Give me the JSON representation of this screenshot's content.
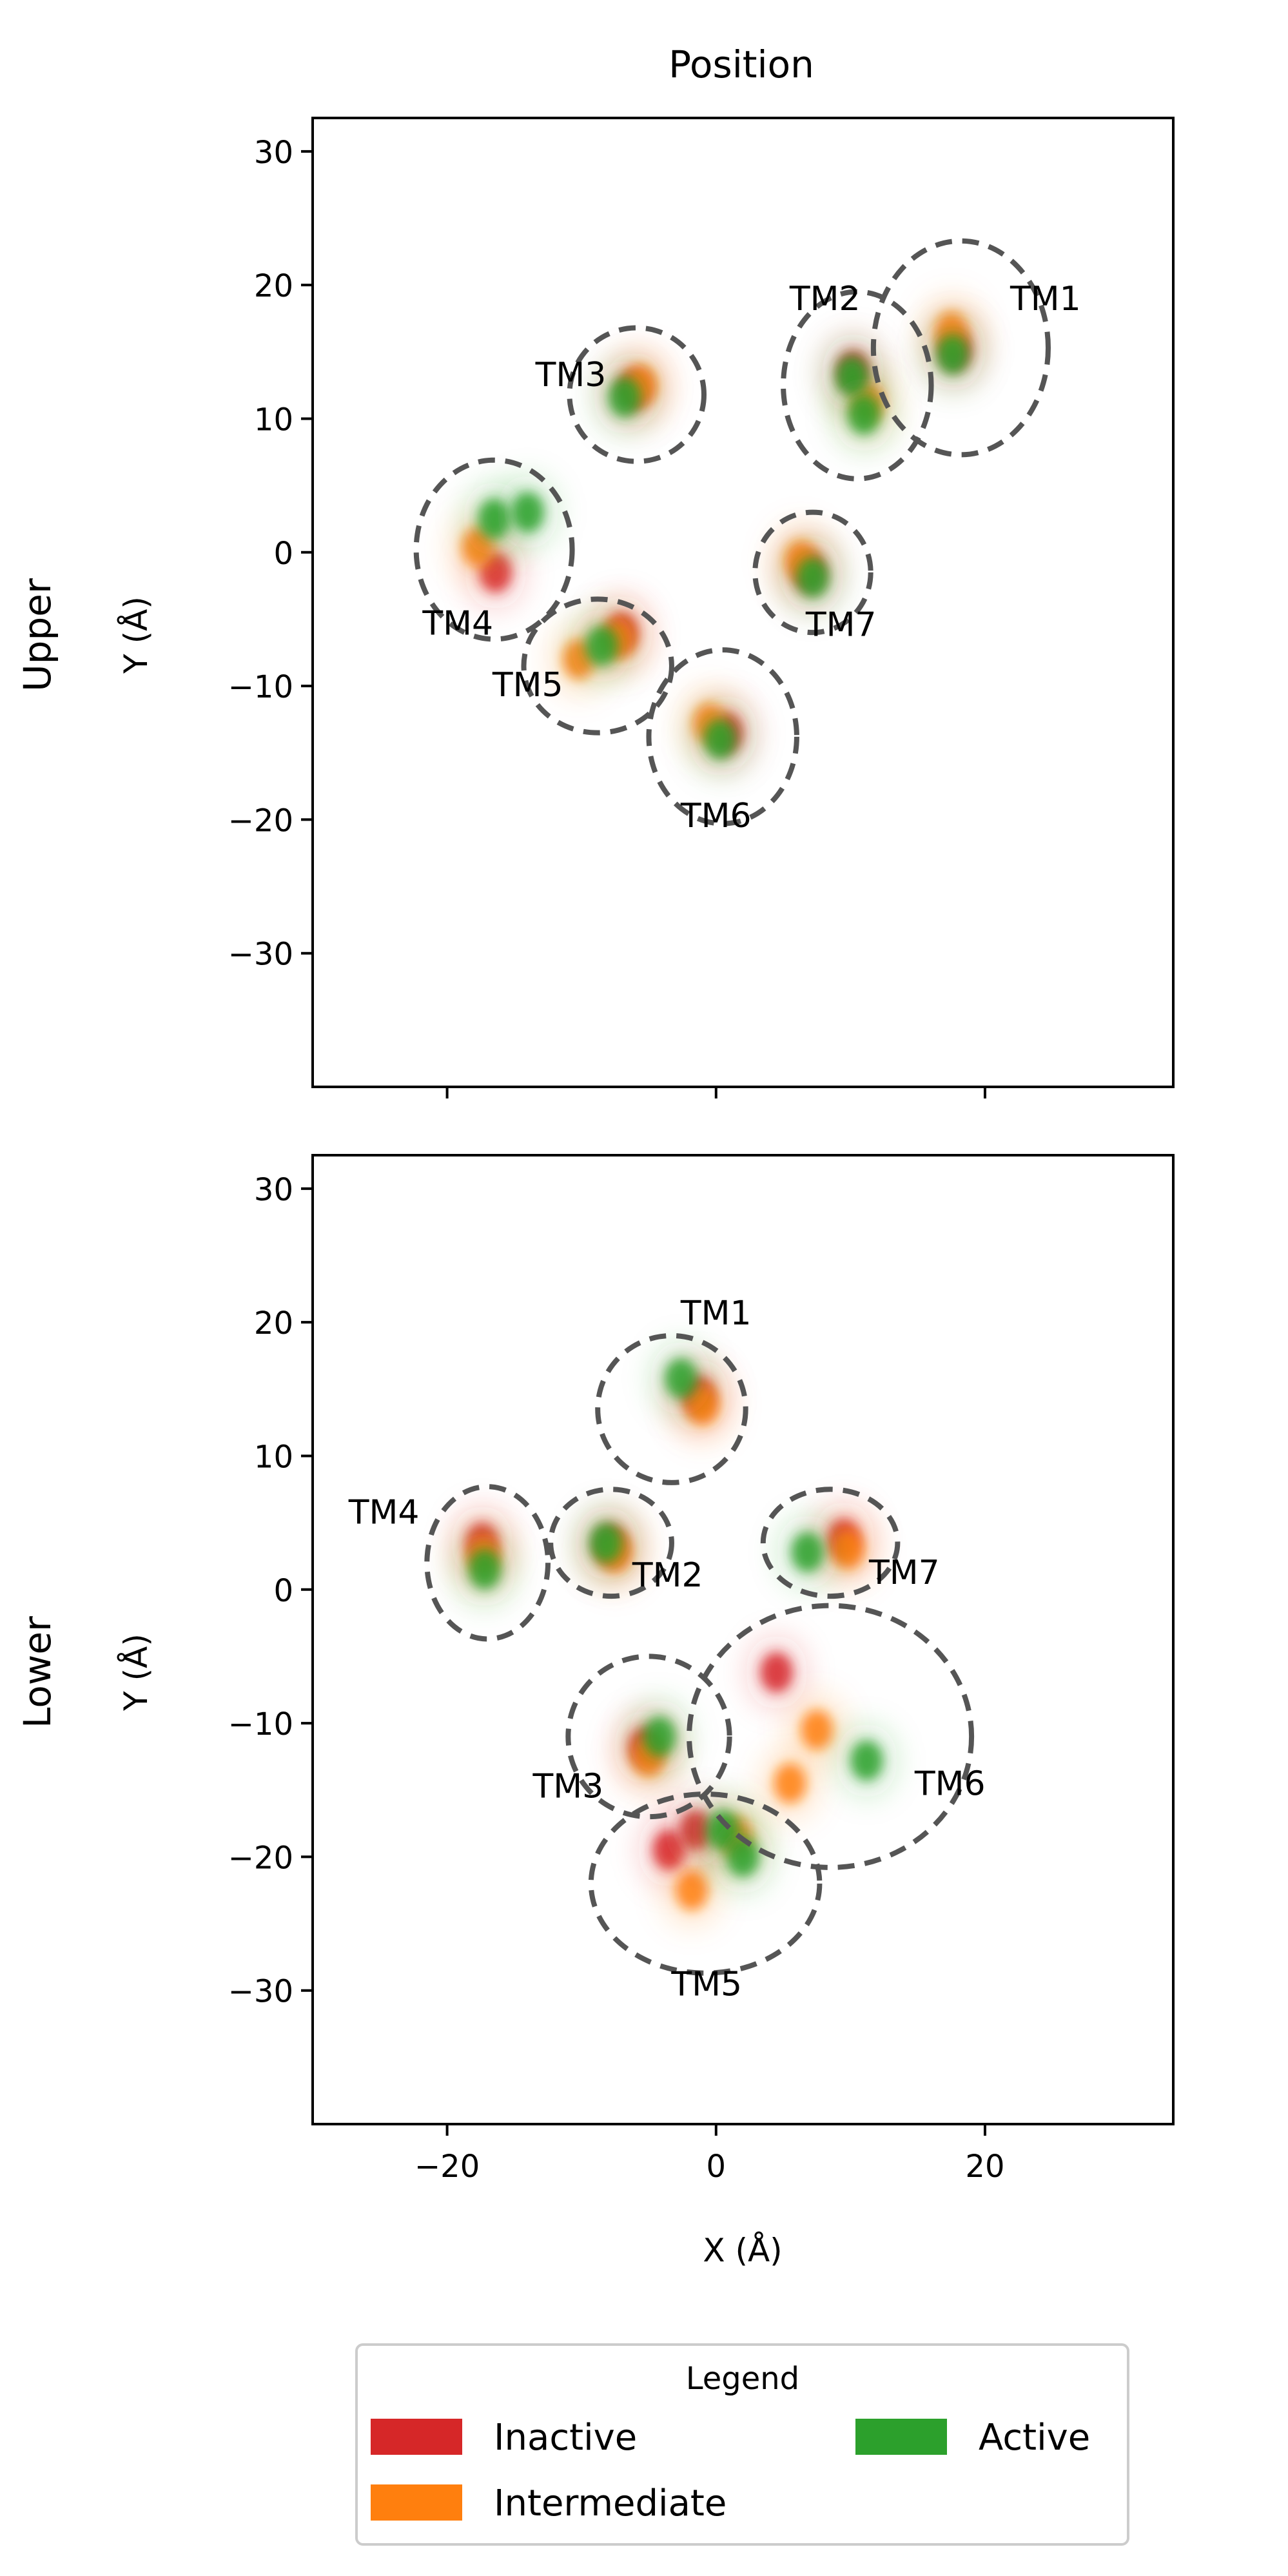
{
  "chart_data": [
    {
      "type": "scatter",
      "title": "Position",
      "row_label": "Upper",
      "xlabel": "",
      "ylabel": "Y (Å)",
      "xlim": [
        -30,
        34
      ],
      "ylim": [
        -40,
        32.5
      ],
      "xticks": [
        -20,
        0,
        20
      ],
      "yticks": [
        30,
        20,
        10,
        0,
        -10,
        -20,
        -30
      ],
      "xtick_labels_shown": false,
      "grid": false,
      "series": [
        {
          "name": "Inactive",
          "color": "#d62728",
          "points": [
            [
              17.8,
              15.2
            ],
            [
              10.2,
              13.6
            ],
            [
              -6.1,
              12.2
            ],
            [
              -16.4,
              -1.5
            ],
            [
              -7.0,
              -6.0
            ],
            [
              0.8,
              -13.5
            ],
            [
              6.9,
              -1.4
            ]
          ]
        },
        {
          "name": "Intermediate",
          "color": "#ff7f0e",
          "points": [
            [
              17.5,
              16.5
            ],
            [
              11.3,
              11.2
            ],
            [
              -5.6,
              12.5
            ],
            [
              -17.7,
              0.4
            ],
            [
              -10.2,
              -8.0
            ],
            [
              -7.3,
              -6.5
            ],
            [
              -0.5,
              -12.8
            ],
            [
              6.3,
              -0.6
            ]
          ]
        },
        {
          "name": "Active",
          "color": "#2ca02c",
          "points": [
            [
              17.6,
              14.8
            ],
            [
              10.1,
              13.2
            ],
            [
              11.0,
              10.3
            ],
            [
              -6.8,
              11.6
            ],
            [
              -16.5,
              2.5
            ],
            [
              -14.0,
              3.0
            ],
            [
              -8.5,
              -7.0
            ],
            [
              0.3,
              -14.0
            ],
            [
              7.2,
              -1.9
            ]
          ]
        }
      ],
      "regions": [
        {
          "label": "TM1",
          "center": [
            18.2,
            15.3
          ],
          "radius": [
            6.5,
            8.0
          ],
          "label_at": [
            24.5,
            19.0
          ]
        },
        {
          "label": "TM2",
          "center": [
            10.5,
            12.5
          ],
          "radius": [
            5.5,
            7.0
          ],
          "label_at": [
            8.1,
            19.0
          ]
        },
        {
          "label": "TM3",
          "center": [
            -5.9,
            11.8
          ],
          "radius": [
            5.0,
            5.0
          ],
          "label_at": [
            -10.8,
            13.3
          ]
        },
        {
          "label": "TM4",
          "center": [
            -16.5,
            0.2
          ],
          "radius": [
            5.8,
            6.7
          ],
          "label_at": [
            -19.2,
            -5.3
          ]
        },
        {
          "label": "TM5",
          "center": [
            -8.8,
            -8.5
          ],
          "radius": [
            5.5,
            5.0
          ],
          "label_at": [
            -14.0,
            -9.9
          ]
        },
        {
          "label": "TM6",
          "center": [
            0.5,
            -13.8
          ],
          "radius": [
            5.5,
            6.5
          ],
          "label_at": [
            0.0,
            -19.7
          ]
        },
        {
          "label": "TM7",
          "center": [
            7.2,
            -1.5
          ],
          "radius": [
            4.3,
            4.5
          ],
          "label_at": [
            9.3,
            -5.4
          ]
        }
      ]
    },
    {
      "type": "scatter",
      "title": "",
      "row_label": "Lower",
      "xlabel": "X (Å)",
      "ylabel": "Y (Å)",
      "xlim": [
        -30,
        34
      ],
      "ylim": [
        -40,
        32.5
      ],
      "xticks": [
        -20,
        0,
        20
      ],
      "xtick_labels": [
        "−20",
        "0",
        "20"
      ],
      "yticks": [
        30,
        20,
        10,
        0,
        -10,
        -20,
        -30
      ],
      "grid": false,
      "series": [
        {
          "name": "Inactive",
          "color": "#d62728",
          "points": [
            [
              -1.3,
              14.5
            ],
            [
              -17.4,
              3.5
            ],
            [
              -7.8,
              3.3
            ],
            [
              9.5,
              3.8
            ],
            [
              -5.3,
              -11.8
            ],
            [
              4.5,
              -6.2
            ],
            [
              -3.5,
              -19.5
            ],
            [
              -1.5,
              -18.0
            ]
          ]
        },
        {
          "name": "Intermediate",
          "color": "#ff7f0e",
          "points": [
            [
              -1.0,
              13.8
            ],
            [
              -17.3,
              2.5
            ],
            [
              -7.5,
              2.8
            ],
            [
              9.8,
              3.0
            ],
            [
              -5.0,
              -12.5
            ],
            [
              7.5,
              -10.5
            ],
            [
              5.5,
              -14.5
            ],
            [
              -1.8,
              -22.5
            ],
            [
              1.5,
              -18.5
            ]
          ]
        },
        {
          "name": "Active",
          "color": "#2ca02c",
          "points": [
            [
              -2.6,
              15.8
            ],
            [
              -17.2,
              1.5
            ],
            [
              -8.2,
              3.5
            ],
            [
              6.8,
              2.8
            ],
            [
              -4.2,
              -11.0
            ],
            [
              11.2,
              -12.8
            ],
            [
              0.5,
              -18.0
            ],
            [
              2.0,
              -20.0
            ]
          ]
        }
      ],
      "regions": [
        {
          "label": "TM1",
          "center": [
            -3.3,
            13.5
          ],
          "radius": [
            5.5,
            5.5
          ],
          "label_at": [
            0.0,
            20.7
          ]
        },
        {
          "label": "TM2",
          "center": [
            -7.8,
            3.5
          ],
          "radius": [
            4.5,
            4.0
          ],
          "label_at": [
            -3.6,
            1.1
          ]
        },
        {
          "label": "TM3",
          "center": [
            -5.0,
            -11.0
          ],
          "radius": [
            6.0,
            6.0
          ],
          "label_at": [
            -11.0,
            -14.7
          ]
        },
        {
          "label": "TM4",
          "center": [
            -17.0,
            2.0
          ],
          "radius": [
            4.5,
            5.7
          ],
          "label_at": [
            -24.7,
            5.8
          ]
        },
        {
          "label": "TM5",
          "center": [
            -0.8,
            -22.0
          ],
          "radius": [
            8.5,
            6.7
          ],
          "label_at": [
            -0.7,
            -29.5
          ]
        },
        {
          "label": "TM6",
          "center": [
            8.5,
            -11.0
          ],
          "radius": [
            10.5,
            9.8
          ],
          "label_at": [
            17.4,
            -14.5
          ]
        },
        {
          "label": "TM7",
          "center": [
            8.5,
            3.5
          ],
          "radius": [
            5.0,
            4.0
          ],
          "label_at": [
            14.0,
            1.3
          ]
        }
      ]
    }
  ],
  "legend": {
    "title": "Legend",
    "placement": "bottom-center",
    "items": [
      {
        "label": "Inactive",
        "color": "#d62728"
      },
      {
        "label": "Intermediate",
        "color": "#ff7f0e"
      },
      {
        "label": "Active",
        "color": "#2ca02c"
      }
    ]
  }
}
